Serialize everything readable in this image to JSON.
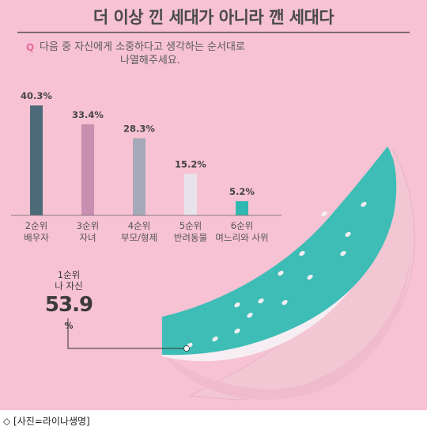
{
  "title": "더 이상 낀 세대가 아니라 깬 세대다",
  "question": {
    "badge": "Q",
    "line1": "다음 중 자신에게 소중하다고 생각하는 순서대로",
    "line2": "나열해주세요."
  },
  "chart_data": {
    "type": "bar",
    "title": "더 이상 낀 세대가 아니라 깬 세대다",
    "categories": [
      "2순위 배우자",
      "3순위 자녀",
      "4순위 부모/형제",
      "5순위 반려동물",
      "6순위 며느리와 사위"
    ],
    "rank_labels": [
      "2순위",
      "3순위",
      "4순위",
      "5순위",
      "6순위"
    ],
    "item_labels": [
      "배우자",
      "자녀",
      "부모/형제",
      "반려동물",
      "며느리와 사위"
    ],
    "values": [
      40.3,
      33.4,
      28.3,
      15.2,
      5.2
    ],
    "value_labels": [
      "40.3%",
      "33.4%",
      "28.3%",
      "15.2%",
      "5.2%"
    ],
    "bar_colors": [
      "#4d6a78",
      "#c98fb0",
      "#a6aab8",
      "#e8e2ea",
      "#2fb8b2"
    ],
    "ylim": [
      0,
      45
    ],
    "highlight": {
      "rank": "1순위",
      "label": "나 자신",
      "value": 53.9,
      "value_text": "53.9",
      "unit": "%"
    }
  },
  "colors": {
    "background": "#f7c2d3",
    "watermelon_flesh": "#3dbdb6",
    "watermelon_rind": "#f3c6d4"
  },
  "caption": "◇ [사진=라이나생명]"
}
